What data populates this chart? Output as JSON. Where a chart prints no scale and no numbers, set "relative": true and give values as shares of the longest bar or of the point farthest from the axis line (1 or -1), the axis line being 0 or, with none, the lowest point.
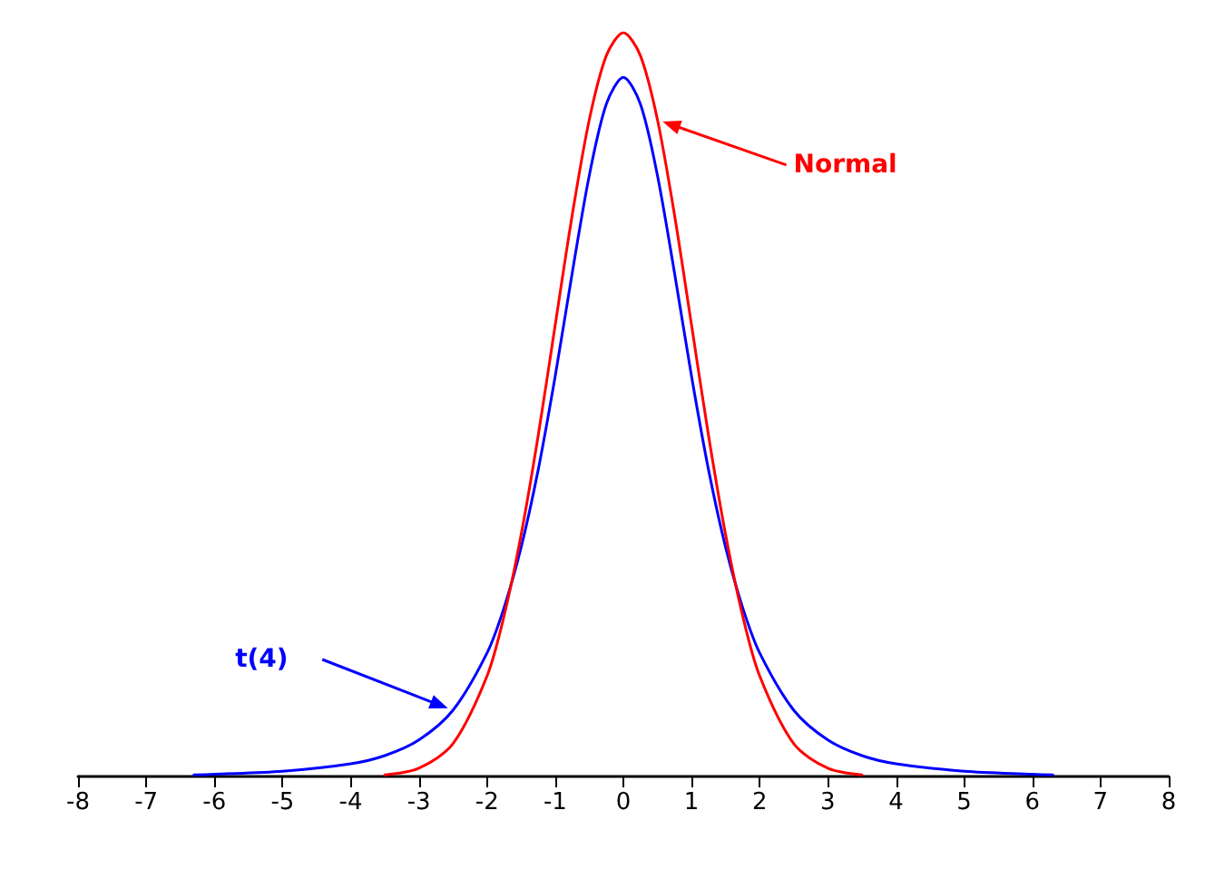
{
  "chart_data": {
    "type": "line",
    "relative": true,
    "xlim": [
      -8,
      8
    ],
    "xticks": [
      -8,
      -7,
      -6,
      -5,
      -4,
      -3,
      -2,
      -1,
      0,
      1,
      2,
      3,
      4,
      5,
      6,
      7,
      8
    ],
    "grid": false,
    "legend": false,
    "marker": "none",
    "line_style": "solid",
    "series": [
      {
        "name": "Normal",
        "color": "#ff0000",
        "x": [
          -3.5,
          -3,
          -2.5,
          -2,
          -1.75,
          -1.5,
          -1.25,
          -1,
          -0.75,
          -0.5,
          -0.25,
          0,
          0.25,
          0.5,
          0.75,
          1,
          1.25,
          1.5,
          1.75,
          2,
          2.5,
          3,
          3.5
        ],
        "values": [
          0.002,
          0.011,
          0.044,
          0.135,
          0.216,
          0.325,
          0.458,
          0.607,
          0.755,
          0.883,
          0.969,
          1,
          0.969,
          0.883,
          0.755,
          0.607,
          0.458,
          0.325,
          0.216,
          0.135,
          0.044,
          0.011,
          0.002
        ]
      },
      {
        "name": "t(4)",
        "color": "#0000ff",
        "x": [
          -6.3,
          -6,
          -5,
          -4,
          -3.5,
          -3,
          -2.5,
          -2,
          -1.75,
          -1.5,
          -1.25,
          -1,
          -0.75,
          -0.5,
          -0.25,
          0,
          0.25,
          0.5,
          0.75,
          1,
          1.25,
          1.5,
          1.75,
          2,
          2.5,
          3,
          3.5,
          4,
          5,
          6,
          6.3
        ],
        "values": [
          0.002,
          0.003,
          0.007,
          0.017,
          0.028,
          0.049,
          0.089,
          0.166,
          0.227,
          0.308,
          0.412,
          0.538,
          0.677,
          0.808,
          0.904,
          0.94,
          0.904,
          0.808,
          0.677,
          0.538,
          0.412,
          0.308,
          0.227,
          0.166,
          0.089,
          0.049,
          0.028,
          0.017,
          0.007,
          0.003,
          0.002
        ]
      }
    ]
  }
}
